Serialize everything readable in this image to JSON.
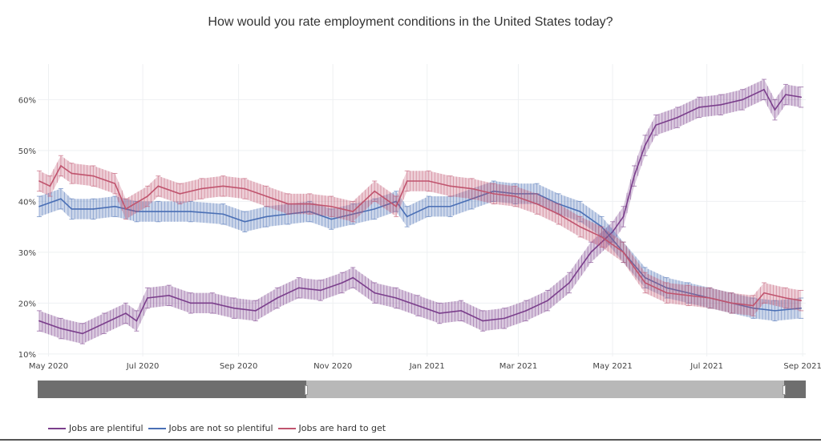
{
  "chart_data": {
    "type": "line",
    "title": "How would you rate employment conditions in the United States today?",
    "xlabel": "",
    "ylabel": "",
    "x_ticks": [
      "May 2020",
      "Jul 2020",
      "Sep 2020",
      "Nov 2020",
      "Jan 2021",
      "Mar 2021",
      "May 2021",
      "Jul 2021",
      "Sep 2021"
    ],
    "x_tick_dates": [
      "2020-05-01",
      "2020-07-01",
      "2020-09-01",
      "2020-11-01",
      "2021-01-01",
      "2021-03-01",
      "2021-05-01",
      "2021-07-01",
      "2021-09-01"
    ],
    "y_ticks": [
      "10%",
      "20%",
      "30%",
      "40%",
      "50%",
      "60%"
    ],
    "y_tick_values": [
      10,
      20,
      30,
      40,
      50,
      60
    ],
    "ylim": [
      9.5,
      67
    ],
    "xlim": [
      "2020-04-24",
      "2021-09-03"
    ],
    "grid": true,
    "error_bars": true,
    "error_margin": 2,
    "legend_position": "bottom-left",
    "range_slider": {
      "start": "2020-10-15",
      "end": "2021-08-20"
    },
    "series": [
      {
        "name": "Jobs are plentiful",
        "color": "#7b3f8c",
        "points": [
          [
            "2020-04-25",
            16.5
          ],
          [
            "2020-05-09",
            15
          ],
          [
            "2020-05-23",
            14
          ],
          [
            "2020-06-06",
            16
          ],
          [
            "2020-06-20",
            18
          ],
          [
            "2020-06-27",
            16.5
          ],
          [
            "2020-07-04",
            21
          ],
          [
            "2020-07-18",
            21.5
          ],
          [
            "2020-08-01",
            20
          ],
          [
            "2020-08-15",
            20
          ],
          [
            "2020-08-29",
            19
          ],
          [
            "2020-09-12",
            18.5
          ],
          [
            "2020-09-26",
            21
          ],
          [
            "2020-10-10",
            23
          ],
          [
            "2020-10-24",
            22.5
          ],
          [
            "2020-11-07",
            24
          ],
          [
            "2020-11-14",
            25
          ],
          [
            "2020-11-28",
            22
          ],
          [
            "2020-12-12",
            21
          ],
          [
            "2020-12-26",
            19.5
          ],
          [
            "2021-01-09",
            18
          ],
          [
            "2021-01-23",
            18.5
          ],
          [
            "2021-02-06",
            16.5
          ],
          [
            "2021-02-20",
            17
          ],
          [
            "2021-03-06",
            18.5
          ],
          [
            "2021-03-20",
            20.5
          ],
          [
            "2021-04-03",
            24
          ],
          [
            "2021-04-17",
            30
          ],
          [
            "2021-05-01",
            34
          ],
          [
            "2021-05-08",
            37
          ],
          [
            "2021-05-15",
            45
          ],
          [
            "2021-05-22",
            51
          ],
          [
            "2021-05-29",
            55
          ],
          [
            "2021-06-12",
            56.5
          ],
          [
            "2021-06-26",
            58.5
          ],
          [
            "2021-07-10",
            59
          ],
          [
            "2021-07-24",
            60
          ],
          [
            "2021-08-07",
            62
          ],
          [
            "2021-08-14",
            58
          ],
          [
            "2021-08-21",
            61
          ],
          [
            "2021-08-31",
            60.5
          ]
        ]
      },
      {
        "name": "Jobs are not so plentiful",
        "color": "#4a6fb5",
        "points": [
          [
            "2020-04-25",
            39
          ],
          [
            "2020-05-09",
            40.5
          ],
          [
            "2020-05-16",
            38.5
          ],
          [
            "2020-05-30",
            38.5
          ],
          [
            "2020-06-13",
            39
          ],
          [
            "2020-06-27",
            38
          ],
          [
            "2020-07-11",
            38
          ],
          [
            "2020-08-01",
            38
          ],
          [
            "2020-08-22",
            37.5
          ],
          [
            "2020-09-05",
            36
          ],
          [
            "2020-09-19",
            37
          ],
          [
            "2020-10-03",
            37.5
          ],
          [
            "2020-10-17",
            38
          ],
          [
            "2020-10-31",
            36.5
          ],
          [
            "2020-11-14",
            37.5
          ],
          [
            "2020-11-28",
            38.5
          ],
          [
            "2020-12-12",
            40
          ],
          [
            "2020-12-19",
            37
          ],
          [
            "2021-01-02",
            39
          ],
          [
            "2021-01-16",
            39
          ],
          [
            "2021-01-30",
            40.5
          ],
          [
            "2021-02-13",
            42
          ],
          [
            "2021-02-27",
            41.5
          ],
          [
            "2021-03-13",
            41.5
          ],
          [
            "2021-03-27",
            39.5
          ],
          [
            "2021-04-10",
            38
          ],
          [
            "2021-04-24",
            35
          ],
          [
            "2021-05-08",
            30
          ],
          [
            "2021-05-22",
            25
          ],
          [
            "2021-06-05",
            23
          ],
          [
            "2021-06-19",
            22
          ],
          [
            "2021-07-03",
            21
          ],
          [
            "2021-07-17",
            20
          ],
          [
            "2021-07-31",
            19
          ],
          [
            "2021-08-14",
            18.5
          ],
          [
            "2021-08-31",
            19
          ]
        ]
      },
      {
        "name": "Jobs are hard to get",
        "color": "#c0546e",
        "points": [
          [
            "2020-04-25",
            44
          ],
          [
            "2020-05-02",
            43
          ],
          [
            "2020-05-09",
            47
          ],
          [
            "2020-05-16",
            45.5
          ],
          [
            "2020-05-30",
            45
          ],
          [
            "2020-06-13",
            43.5
          ],
          [
            "2020-06-20",
            38.5
          ],
          [
            "2020-07-04",
            41
          ],
          [
            "2020-07-11",
            43
          ],
          [
            "2020-07-25",
            41.5
          ],
          [
            "2020-08-08",
            42.5
          ],
          [
            "2020-08-22",
            43
          ],
          [
            "2020-09-05",
            42.5
          ],
          [
            "2020-09-19",
            41
          ],
          [
            "2020-10-03",
            39.5
          ],
          [
            "2020-10-17",
            39.5
          ],
          [
            "2020-10-31",
            39
          ],
          [
            "2020-11-14",
            38
          ],
          [
            "2020-11-28",
            42
          ],
          [
            "2020-12-12",
            39
          ],
          [
            "2020-12-19",
            44
          ],
          [
            "2021-01-02",
            44
          ],
          [
            "2021-01-16",
            43
          ],
          [
            "2021-01-30",
            42.5
          ],
          [
            "2021-02-13",
            41.5
          ],
          [
            "2021-02-27",
            41
          ],
          [
            "2021-03-13",
            39.5
          ],
          [
            "2021-03-27",
            37.5
          ],
          [
            "2021-04-10",
            35
          ],
          [
            "2021-04-24",
            33
          ],
          [
            "2021-05-08",
            30
          ],
          [
            "2021-05-22",
            24
          ],
          [
            "2021-06-05",
            22
          ],
          [
            "2021-06-19",
            21.5
          ],
          [
            "2021-07-03",
            21
          ],
          [
            "2021-07-17",
            20
          ],
          [
            "2021-07-31",
            19.5
          ],
          [
            "2021-08-07",
            22
          ],
          [
            "2021-08-21",
            21
          ],
          [
            "2021-08-31",
            20.5
          ]
        ]
      }
    ]
  }
}
